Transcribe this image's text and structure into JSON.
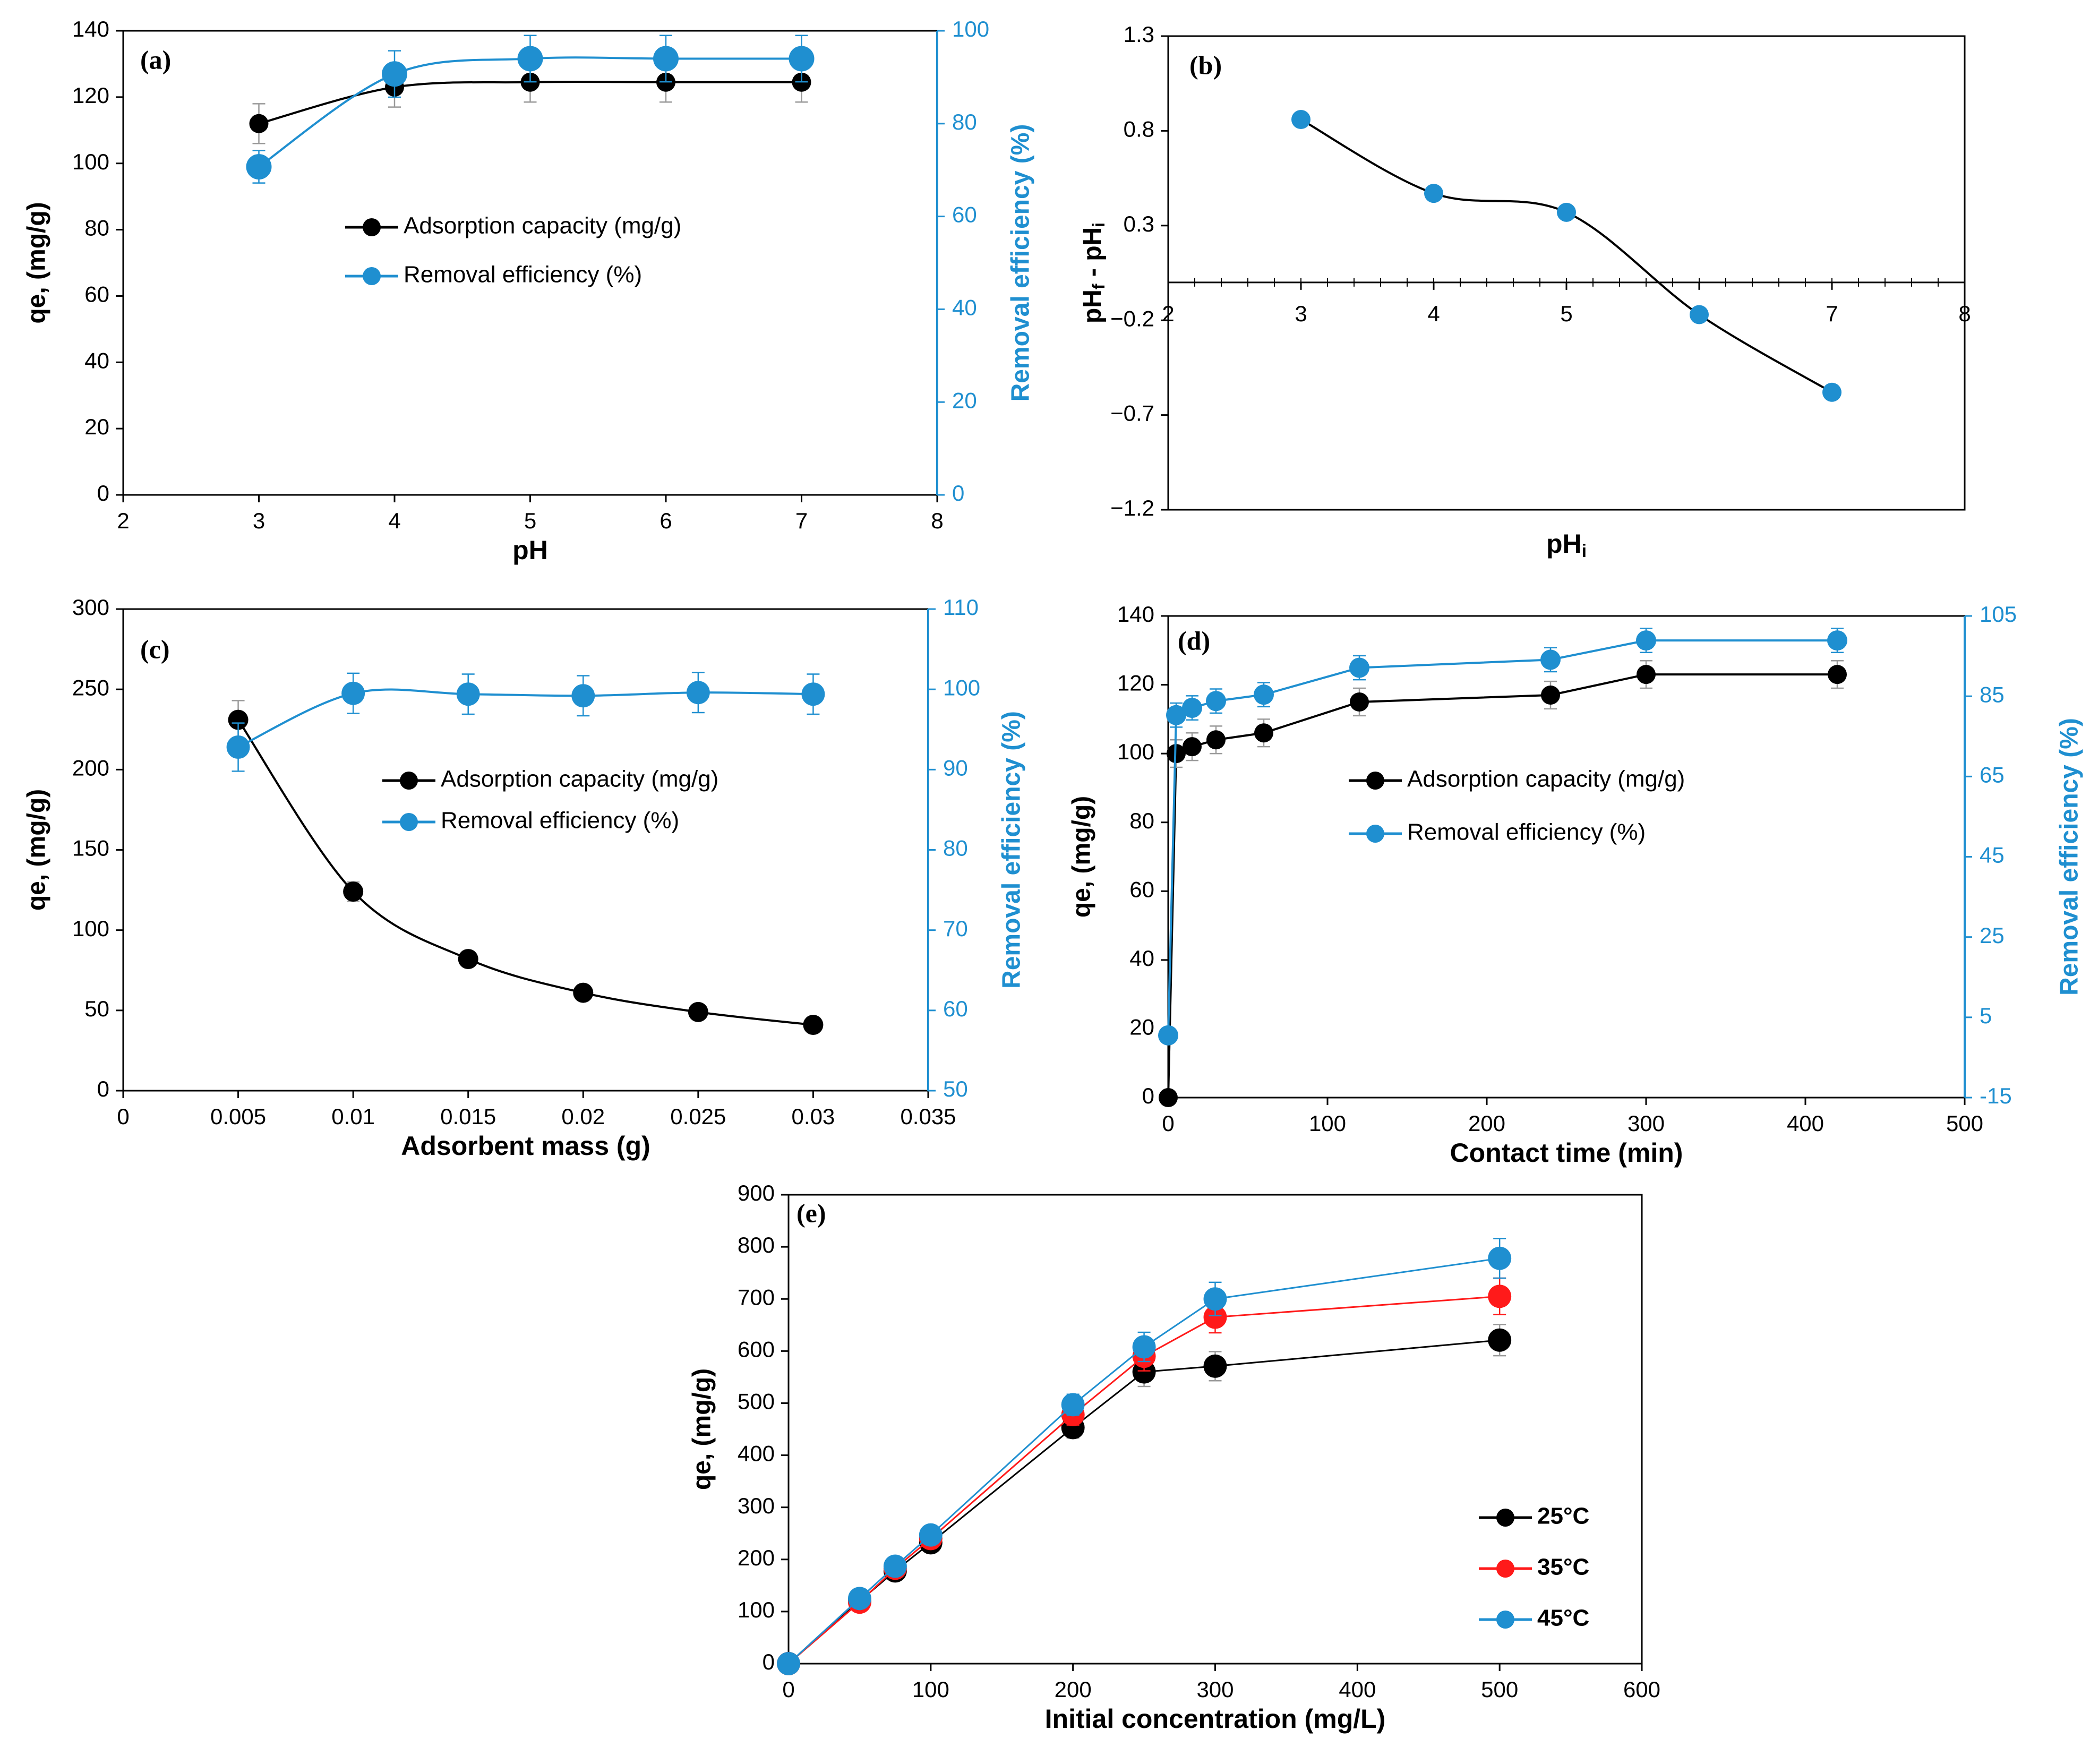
{
  "colors": {
    "black": "#000000",
    "blue": "#1f8fd0",
    "red": "#ff1a1a",
    "err_gray": "#9a9a9a"
  },
  "chart_data": [
    {
      "id": "a",
      "panel_label": "(a)",
      "type": "line",
      "title": "",
      "xlabel": "pH",
      "ylabel": "qe, (mg/g)",
      "y2label": "Removal efficiency (%)",
      "xlim": [
        2,
        8
      ],
      "ylim": [
        0,
        140
      ],
      "y2lim": [
        0,
        100
      ],
      "xticks": [
        "2",
        "3",
        "4",
        "5",
        "6",
        "7",
        "8"
      ],
      "yticks": [
        "0",
        "20",
        "40",
        "60",
        "80",
        "100",
        "120",
        "140"
      ],
      "y2ticks": [
        "0",
        "20",
        "40",
        "60",
        "80",
        "100"
      ],
      "legend": [
        "Adsorption capacity (mg/g)",
        "Removal efficiency (%)"
      ],
      "series": [
        {
          "name": "Adsorption capacity (mg/g)",
          "axis": "left",
          "color": "black",
          "x": [
            3,
            4,
            5,
            6,
            7
          ],
          "values": [
            112,
            123,
            124.5,
            124.5,
            124.5
          ],
          "err": [
            6,
            6,
            6,
            6,
            6
          ]
        },
        {
          "name": "Removal efficiency (%)",
          "axis": "right",
          "color": "blue",
          "x": [
            3,
            4,
            5,
            6,
            7
          ],
          "values": [
            70.7,
            90.7,
            94,
            94,
            94
          ],
          "err": [
            3.5,
            5,
            5,
            5,
            5
          ]
        }
      ]
    },
    {
      "id": "b",
      "panel_label": "(b)",
      "type": "line",
      "title": "",
      "xlabel": "pHi",
      "ylabel": "pHf - pHi",
      "xlim": [
        2,
        8
      ],
      "ylim": [
        -1.2,
        1.3
      ],
      "xticks": [
        "2",
        "3",
        "4",
        "5",
        "6",
        "7",
        "8"
      ],
      "yticks": [
        "−1.2",
        "−0.7",
        "−0.2",
        "0.3",
        "0.8",
        "1.3"
      ],
      "series": [
        {
          "name": "pHf - pHi",
          "color": "blue",
          "x": [
            3,
            4,
            5,
            6,
            7
          ],
          "values": [
            0.86,
            0.47,
            0.37,
            -0.17,
            -0.58
          ]
        }
      ]
    },
    {
      "id": "c",
      "panel_label": "(c)",
      "type": "line",
      "title": "",
      "xlabel": "Adsorbent mass (g)",
      "ylabel": "qe, (mg/g)",
      "y2label": "Removal efficiency (%)",
      "xlim": [
        0,
        0.035
      ],
      "ylim": [
        0,
        300
      ],
      "y2lim": [
        50,
        110
      ],
      "xticks": [
        "0",
        "0.005",
        "0.01",
        "0.015",
        "0.02",
        "0.025",
        "0.03",
        "0.035"
      ],
      "yticks": [
        "0",
        "50",
        "100",
        "150",
        "200",
        "250",
        "300"
      ],
      "y2ticks": [
        "50",
        "60",
        "70",
        "80",
        "90",
        "100",
        "110"
      ],
      "legend": [
        "Adsorption capacity (mg/g)",
        "Removal efficiency (%)"
      ],
      "series": [
        {
          "name": "Adsorption capacity (mg/g)",
          "axis": "left",
          "color": "black",
          "x": [
            0.005,
            0.01,
            0.015,
            0.02,
            0.025,
            0.03
          ],
          "values": [
            231,
            124,
            82,
            61,
            49,
            41
          ],
          "err": [
            12,
            6,
            4,
            3,
            3,
            2
          ]
        },
        {
          "name": "Removal efficiency (%)",
          "axis": "right",
          "color": "blue",
          "x": [
            0.005,
            0.01,
            0.015,
            0.02,
            0.025,
            0.03
          ],
          "values": [
            92.8,
            99.5,
            99.4,
            99.2,
            99.6,
            99.4
          ],
          "err": [
            3,
            2.5,
            2.5,
            2.5,
            2.5,
            2.5
          ]
        }
      ]
    },
    {
      "id": "d",
      "panel_label": "(d)",
      "type": "line",
      "title": "",
      "xlabel": "Contact time (min)",
      "ylabel": "qe, (mg/g)",
      "y2label": "Removal efficiency (%)",
      "xlim": [
        0,
        500
      ],
      "ylim": [
        0,
        140
      ],
      "y2lim": [
        -15,
        105
      ],
      "xticks": [
        "0",
        "100",
        "200",
        "300",
        "400",
        "500"
      ],
      "yticks": [
        "0",
        "20",
        "40",
        "60",
        "80",
        "100",
        "120",
        "140"
      ],
      "y2ticks": [
        "-15",
        "5",
        "25",
        "45",
        "65",
        "85",
        "105"
      ],
      "legend": [
        "Adsorption capacity (mg/g)",
        "Removal efficiency (%)"
      ],
      "series": [
        {
          "name": "Adsorption capacity (mg/g)",
          "axis": "left",
          "color": "black",
          "x": [
            0,
            5,
            15,
            30,
            60,
            120,
            240,
            300,
            420
          ],
          "values": [
            0,
            100,
            102,
            104,
            106,
            115,
            117,
            123,
            123
          ],
          "err": [
            0,
            4,
            4,
            4,
            4,
            4,
            4,
            4,
            4
          ]
        },
        {
          "name": "Removal efficiency (%)",
          "axis": "right",
          "color": "blue",
          "x": [
            0,
            5,
            15,
            30,
            60,
            120,
            240,
            300,
            420
          ],
          "values": [
            0.5,
            80.3,
            82.1,
            83.8,
            85.4,
            92.1,
            94.1,
            98.9,
            98.9
          ],
          "err": [
            0,
            3,
            3,
            3,
            3,
            3,
            3,
            3,
            3
          ]
        }
      ]
    },
    {
      "id": "e",
      "panel_label": "(e)",
      "type": "line",
      "title": "",
      "xlabel": "Initial concentration (mg/L)",
      "ylabel": "qe, (mg/g)",
      "xlim": [
        0,
        600
      ],
      "ylim": [
        0,
        900
      ],
      "xticks": [
        "0",
        "100",
        "200",
        "300",
        "400",
        "500",
        "600"
      ],
      "yticks": [
        "0",
        "100",
        "200",
        "300",
        "400",
        "500",
        "600",
        "700",
        "800",
        "900"
      ],
      "legend": [
        "25°C",
        "35°C",
        "45°C"
      ],
      "series": [
        {
          "name": "25°C",
          "color": "black",
          "x": [
            0,
            50,
            75,
            100,
            200,
            250,
            300,
            500
          ],
          "values": [
            0,
            120,
            178,
            232,
            453,
            560,
            571,
            621
          ],
          "err": [
            0,
            10,
            12,
            14,
            20,
            28,
            28,
            30
          ]
        },
        {
          "name": "35°C",
          "color": "red",
          "x": [
            0,
            50,
            75,
            100,
            200,
            250,
            300,
            500
          ],
          "values": [
            0,
            118,
            183,
            240,
            478,
            590,
            665,
            705
          ],
          "err": [
            0,
            10,
            12,
            14,
            20,
            28,
            30,
            35
          ]
        },
        {
          "name": "45°C",
          "color": "blue",
          "x": [
            0,
            50,
            75,
            100,
            200,
            250,
            300,
            500
          ],
          "values": [
            0,
            125,
            187,
            247,
            497,
            608,
            700,
            778
          ],
          "err": [
            0,
            10,
            12,
            14,
            20,
            28,
            32,
            38
          ]
        }
      ]
    }
  ]
}
